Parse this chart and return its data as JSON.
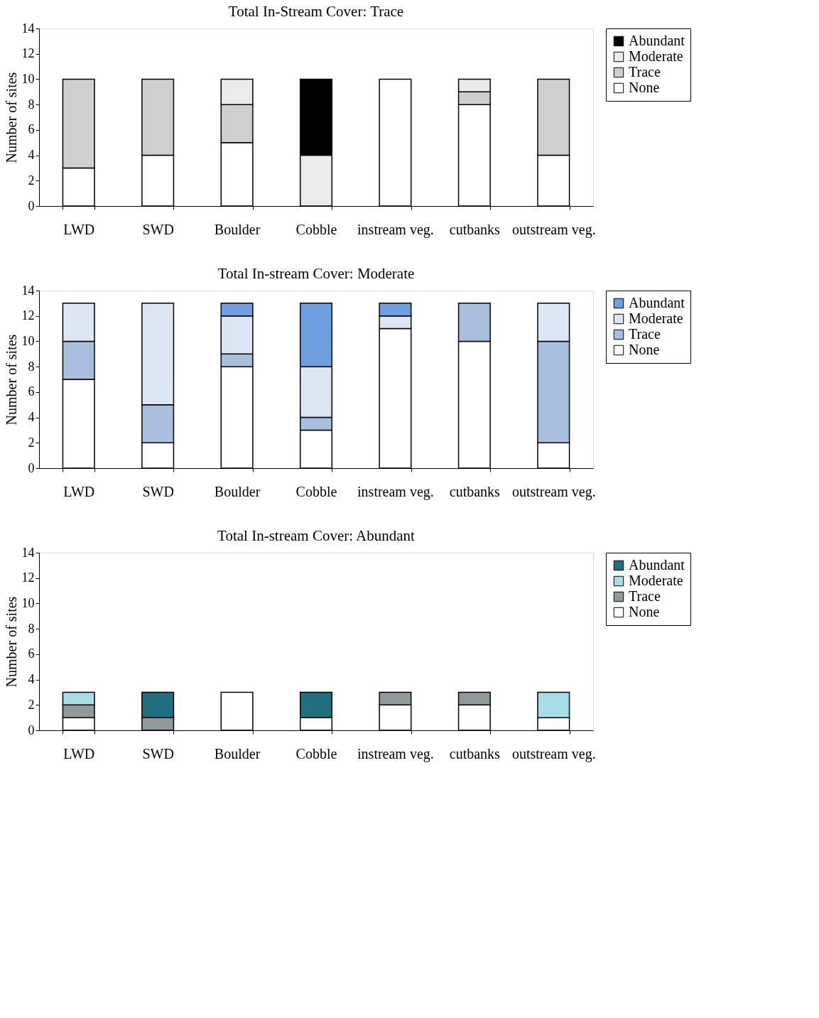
{
  "chart_data": [
    {
      "type": "bar",
      "stacked": true,
      "title": "Total In-Stream Cover: Trace",
      "ylabel": "Number of sites",
      "categories": [
        "LWD",
        "SWD",
        "Boulder",
        "Cobble",
        "instream veg.",
        "cutbanks",
        "outstream veg."
      ],
      "ylim": [
        0,
        14
      ],
      "yticks": [
        0,
        2,
        4,
        6,
        8,
        10,
        12,
        14
      ],
      "grid": false,
      "legend": "top right",
      "series": [
        {
          "name": "None",
          "color": "#ffffff",
          "values": [
            3,
            4,
            5,
            0,
            10,
            8,
            4
          ]
        },
        {
          "name": "Trace",
          "color": "#cfcfcf",
          "values": [
            7,
            6,
            3,
            0,
            0,
            1,
            6
          ]
        },
        {
          "name": "Moderate",
          "color": "#ebebeb",
          "values": [
            0,
            0,
            2,
            4,
            0,
            1,
            0
          ]
        },
        {
          "name": "Abundant",
          "color": "#000000",
          "values": [
            0,
            0,
            0,
            6,
            0,
            0,
            0
          ]
        }
      ]
    },
    {
      "type": "bar",
      "stacked": true,
      "title": "Total In-stream Cover: Moderate",
      "ylabel": "Number of sites",
      "categories": [
        "LWD",
        "SWD",
        "Boulder",
        "Cobble",
        "instream veg.",
        "cutbanks",
        "outstream veg."
      ],
      "ylim": [
        0,
        14
      ],
      "yticks": [
        0,
        2,
        4,
        6,
        8,
        10,
        12,
        14
      ],
      "grid": false,
      "legend": "top right",
      "series": [
        {
          "name": "None",
          "color": "#ffffff",
          "values": [
            7,
            2,
            8,
            3,
            11,
            10,
            2
          ]
        },
        {
          "name": "Trace",
          "color": "#a9bfe0",
          "values": [
            3,
            3,
            1,
            1,
            0,
            3,
            8
          ]
        },
        {
          "name": "Moderate",
          "color": "#dde6f4",
          "values": [
            3,
            8,
            3,
            4,
            1,
            0,
            3
          ]
        },
        {
          "name": "Abundant",
          "color": "#6f9fe0",
          "values": [
            0,
            0,
            1,
            5,
            1,
            0,
            0
          ]
        }
      ]
    },
    {
      "type": "bar",
      "stacked": true,
      "title": "Total In-stream Cover: Abundant",
      "ylabel": "Number of sites",
      "categories": [
        "LWD",
        "SWD",
        "Boulder",
        "Cobble",
        "instream veg.",
        "cutbanks",
        "outstream veg."
      ],
      "ylim": [
        0,
        14
      ],
      "yticks": [
        0,
        2,
        4,
        6,
        8,
        10,
        12,
        14
      ],
      "grid": false,
      "legend": "top right",
      "series": [
        {
          "name": "None",
          "color": "#ffffff",
          "values": [
            1,
            0,
            3,
            1,
            2,
            2,
            1
          ]
        },
        {
          "name": "Trace",
          "color": "#909a9a",
          "values": [
            1,
            1,
            0,
            0,
            1,
            1,
            0
          ]
        },
        {
          "name": "Moderate",
          "color": "#a8dde6",
          "values": [
            1,
            0,
            0,
            0,
            0,
            0,
            2
          ]
        },
        {
          "name": "Abundant",
          "color": "#1f6f80",
          "values": [
            0,
            2,
            0,
            2,
            0,
            0,
            0
          ]
        }
      ]
    }
  ]
}
